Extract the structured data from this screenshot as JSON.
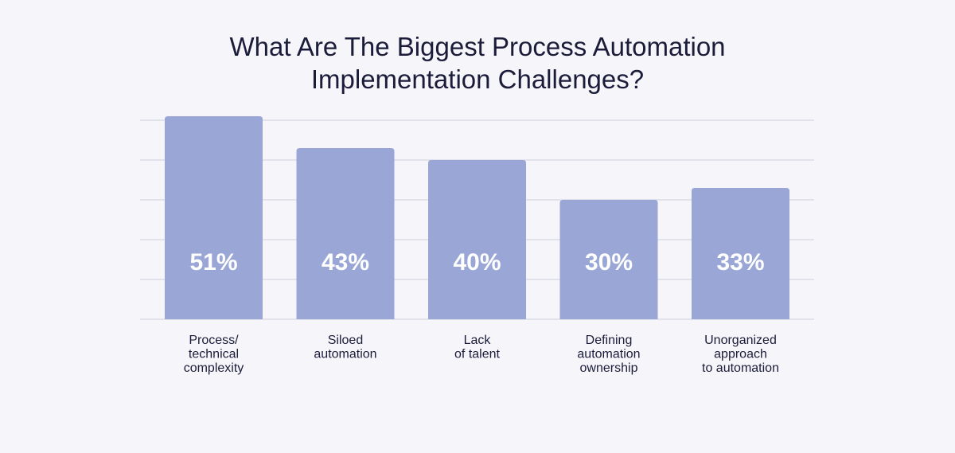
{
  "chart_data": {
    "type": "bar",
    "title": [
      "What Are The Biggest Process Automation",
      "Implementation Challenges?"
    ],
    "categories": [
      [
        "Process/",
        "technical",
        "complexity"
      ],
      [
        "Siloed",
        "automation"
      ],
      [
        "Lack",
        "of talent"
      ],
      [
        "Defining",
        "automation",
        "ownership"
      ],
      [
        "Unorganized",
        "approach",
        "to automation"
      ]
    ],
    "values": [
      51,
      43,
      40,
      30,
      33
    ],
    "value_labels": [
      "51%",
      "43%",
      "40%",
      "30%",
      "33%"
    ],
    "xlabel": "",
    "ylabel": "",
    "ylim": [
      0,
      50
    ],
    "grid": true,
    "legend": "none",
    "colors": {
      "bar": "#9aa7d6",
      "grid": "#cfcfdc",
      "text": "#1b1c3a",
      "value_text": "#ffffff",
      "background": "#f6f5fa"
    }
  }
}
